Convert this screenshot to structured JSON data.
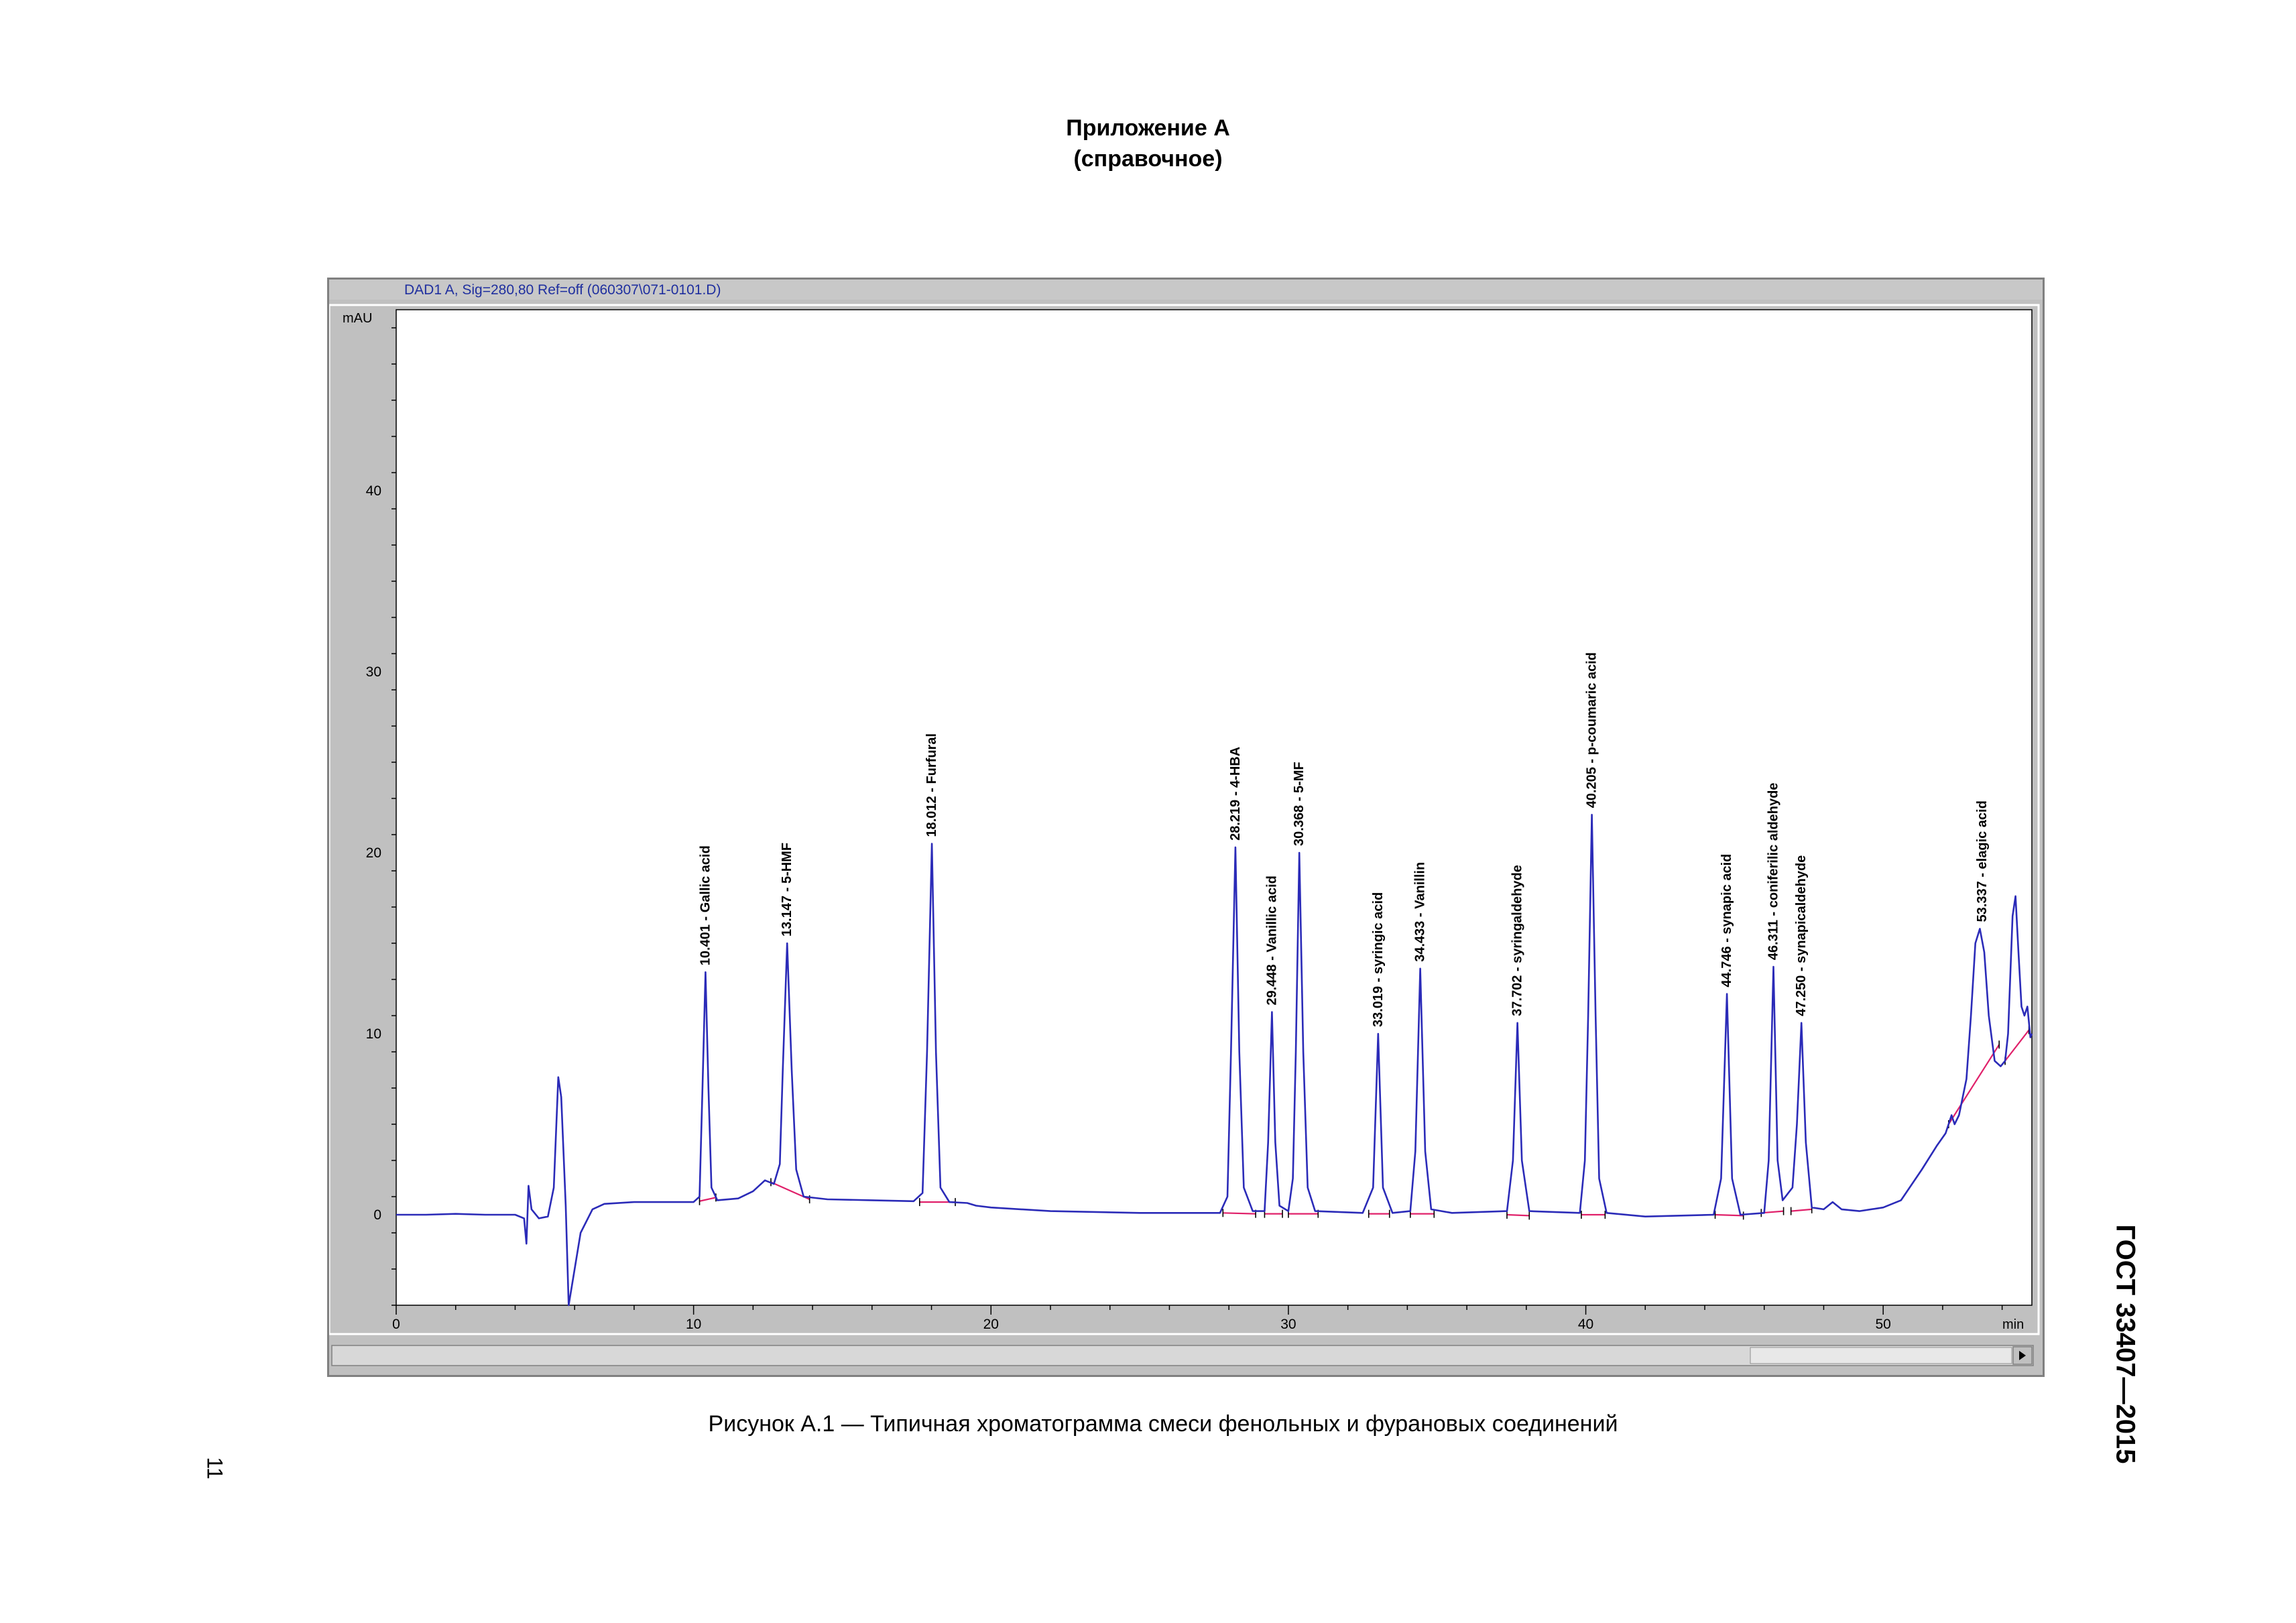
{
  "page": {
    "appendix_title": "Приложение А",
    "appendix_subtitle": "(справочное)",
    "caption": "Рисунок А.1 — Типичная хроматограмма смеси фенольных и фурановых соединений",
    "doc_code": "ГОСТ 33407—2015",
    "page_number": "11"
  },
  "colors": {
    "trace": "#2b2bb8",
    "baseline": "#e0206a",
    "header_text": "#1f2f9f",
    "window_bg": "#c0c0c0",
    "plot_bg": "#ffffff"
  },
  "icons": {
    "scroll_right": "triangle-right-icon"
  },
  "chart_data": {
    "type": "line",
    "window_title": "DAD1 A, Sig=280,80 Ref=off (060307\\071-0101.D)",
    "ylabel": "mAU",
    "xlabel": "min",
    "xlim": [
      0,
      55
    ],
    "ylim": [
      -5,
      50
    ],
    "xticks": [
      0,
      10,
      20,
      30,
      40,
      50
    ],
    "yticks": [
      0,
      10,
      20,
      30,
      40
    ],
    "grid": false,
    "peaks": [
      {
        "rt": 10.401,
        "height": 13.4,
        "label": "10.401 -  Gallic acid"
      },
      {
        "rt": 13.147,
        "height": 15.0,
        "label": "13.147 -  5-HMF"
      },
      {
        "rt": 18.012,
        "height": 20.5,
        "label": "18.012 -  Furfural"
      },
      {
        "rt": 28.219,
        "height": 20.3,
        "label": "28.219 -  4-HBA"
      },
      {
        "rt": 29.448,
        "height": 11.2,
        "label": "29.448 -  Vanillic acid"
      },
      {
        "rt": 30.368,
        "height": 20.0,
        "label": "30.368 -  5-MF"
      },
      {
        "rt": 33.019,
        "height": 10.0,
        "label": "33.019 -  syringic acid"
      },
      {
        "rt": 34.433,
        "height": 13.6,
        "label": "34.433 -  Vanillin"
      },
      {
        "rt": 37.702,
        "height": 10.6,
        "label": "37.702 -  syringaldehyde"
      },
      {
        "rt": 40.205,
        "height": 22.1,
        "label": "40.205 -  p-coumaric acid"
      },
      {
        "rt": 44.746,
        "height": 12.2,
        "label": "44.746 -  synapic acid"
      },
      {
        "rt": 46.311,
        "height": 13.7,
        "label": "46.311 -  coniferilic aldehyde"
      },
      {
        "rt": 47.25,
        "height": 10.6,
        "label": "47.250 -  synapicaldehyde"
      },
      {
        "rt": 53.337,
        "height": 15.8,
        "label": "53.337 -  elagic acid"
      }
    ],
    "trace": [
      [
        0,
        0
      ],
      [
        1,
        0
      ],
      [
        2,
        0.05
      ],
      [
        3,
        0
      ],
      [
        4,
        0
      ],
      [
        4.3,
        -0.2
      ],
      [
        4.38,
        -1.6
      ],
      [
        4.45,
        1.6
      ],
      [
        4.55,
        0.3
      ],
      [
        4.8,
        -0.2
      ],
      [
        5.1,
        -0.1
      ],
      [
        5.3,
        1.5
      ],
      [
        5.45,
        7.6
      ],
      [
        5.55,
        6.5
      ],
      [
        5.7,
        0.5
      ],
      [
        5.8,
        -5
      ],
      [
        5.95,
        -3.5
      ],
      [
        6.2,
        -1
      ],
      [
        6.6,
        0.3
      ],
      [
        7,
        0.6
      ],
      [
        8,
        0.7
      ],
      [
        9,
        0.7
      ],
      [
        10.0,
        0.7
      ],
      [
        10.2,
        1.0
      ],
      [
        10.3,
        7
      ],
      [
        10.401,
        13.4
      ],
      [
        10.5,
        7
      ],
      [
        10.6,
        1.5
      ],
      [
        10.8,
        0.8
      ],
      [
        11.5,
        0.9
      ],
      [
        12.0,
        1.3
      ],
      [
        12.4,
        1.9
      ],
      [
        12.7,
        1.7
      ],
      [
        12.9,
        2.8
      ],
      [
        13.0,
        8.0
      ],
      [
        13.147,
        15.0
      ],
      [
        13.3,
        8.0
      ],
      [
        13.45,
        2.5
      ],
      [
        13.7,
        1.0
      ],
      [
        14.5,
        0.85
      ],
      [
        16,
        0.8
      ],
      [
        17.4,
        0.75
      ],
      [
        17.7,
        1.2
      ],
      [
        17.85,
        9
      ],
      [
        18.012,
        20.5
      ],
      [
        18.15,
        9
      ],
      [
        18.3,
        1.5
      ],
      [
        18.6,
        0.7
      ],
      [
        19.2,
        0.65
      ],
      [
        19.5,
        0.5
      ],
      [
        20,
        0.4
      ],
      [
        22,
        0.2
      ],
      [
        25,
        0.1
      ],
      [
        27.7,
        0.1
      ],
      [
        27.95,
        1.0
      ],
      [
        28.07,
        9
      ],
      [
        28.219,
        20.3
      ],
      [
        28.35,
        9
      ],
      [
        28.5,
        1.5
      ],
      [
        28.8,
        0.2
      ],
      [
        29.2,
        0.2
      ],
      [
        29.32,
        4
      ],
      [
        29.448,
        11.2
      ],
      [
        29.56,
        4
      ],
      [
        29.7,
        0.5
      ],
      [
        30.0,
        0.2
      ],
      [
        30.15,
        2
      ],
      [
        30.25,
        9
      ],
      [
        30.368,
        20.0
      ],
      [
        30.5,
        9
      ],
      [
        30.65,
        1.5
      ],
      [
        30.9,
        0.2
      ],
      [
        32.5,
        0.1
      ],
      [
        32.85,
        1.5
      ],
      [
        33.019,
        10.0
      ],
      [
        33.18,
        1.5
      ],
      [
        33.5,
        0.1
      ],
      [
        34.1,
        0.2
      ],
      [
        34.27,
        3.5
      ],
      [
        34.433,
        13.6
      ],
      [
        34.6,
        3.5
      ],
      [
        34.8,
        0.3
      ],
      [
        35.5,
        0.1
      ],
      [
        37.35,
        0.2
      ],
      [
        37.55,
        3
      ],
      [
        37.702,
        10.6
      ],
      [
        37.85,
        3
      ],
      [
        38.1,
        0.2
      ],
      [
        39.8,
        0.1
      ],
      [
        39.97,
        3
      ],
      [
        40.08,
        11
      ],
      [
        40.205,
        22.1
      ],
      [
        40.33,
        11
      ],
      [
        40.45,
        2
      ],
      [
        40.7,
        0.1
      ],
      [
        42,
        -0.1
      ],
      [
        44.3,
        0
      ],
      [
        44.55,
        2
      ],
      [
        44.746,
        12.2
      ],
      [
        44.92,
        2
      ],
      [
        45.2,
        0
      ],
      [
        46.0,
        0.1
      ],
      [
        46.15,
        3
      ],
      [
        46.311,
        13.7
      ],
      [
        46.45,
        3
      ],
      [
        46.62,
        0.8
      ],
      [
        46.95,
        1.5
      ],
      [
        47.1,
        5
      ],
      [
        47.25,
        10.6
      ],
      [
        47.4,
        4
      ],
      [
        47.6,
        0.4
      ],
      [
        48.0,
        0.3
      ],
      [
        48.3,
        0.7
      ],
      [
        48.6,
        0.3
      ],
      [
        49.2,
        0.2
      ],
      [
        50.0,
        0.4
      ],
      [
        50.6,
        0.8
      ],
      [
        51.3,
        2.5
      ],
      [
        51.8,
        3.8
      ],
      [
        52.1,
        4.5
      ],
      [
        52.3,
        5.5
      ],
      [
        52.4,
        5.0
      ],
      [
        52.55,
        5.5
      ],
      [
        52.8,
        7.5
      ],
      [
        52.95,
        11
      ],
      [
        53.1,
        15
      ],
      [
        53.25,
        15.8
      ],
      [
        53.4,
        14.5
      ],
      [
        53.55,
        11
      ],
      [
        53.75,
        8.5
      ],
      [
        53.95,
        8.2
      ],
      [
        54.1,
        8.5
      ],
      [
        54.2,
        10
      ],
      [
        54.35,
        16.5
      ],
      [
        54.45,
        17.6
      ],
      [
        54.55,
        14.5
      ],
      [
        54.65,
        11.5
      ],
      [
        54.75,
        11.0
      ],
      [
        54.85,
        11.5
      ],
      [
        54.95,
        9.8
      ],
      [
        55,
        10
      ]
    ],
    "baselines": [
      [
        [
          10.2,
          0.75
        ],
        [
          10.75,
          0.95
        ]
      ],
      [
        [
          12.6,
          1.8
        ],
        [
          13.9,
          0.85
        ]
      ],
      [
        [
          17.6,
          0.7
        ],
        [
          18.8,
          0.7
        ]
      ],
      [
        [
          27.8,
          0.1
        ],
        [
          28.9,
          0.05
        ]
      ],
      [
        [
          29.2,
          0.05
        ],
        [
          29.8,
          0.05
        ]
      ],
      [
        [
          30.0,
          0.05
        ],
        [
          31.0,
          0.05
        ]
      ],
      [
        [
          32.7,
          0.05
        ],
        [
          33.4,
          0.05
        ]
      ],
      [
        [
          34.1,
          0.05
        ],
        [
          34.9,
          0.05
        ]
      ],
      [
        [
          37.35,
          0.0
        ],
        [
          38.1,
          -0.05
        ]
      ],
      [
        [
          39.85,
          0.0
        ],
        [
          40.65,
          0.0
        ]
      ],
      [
        [
          44.35,
          0.0
        ],
        [
          45.3,
          -0.05
        ]
      ],
      [
        [
          45.9,
          0.1
        ],
        [
          46.65,
          0.2
        ]
      ],
      [
        [
          46.9,
          0.2
        ],
        [
          47.6,
          0.3
        ]
      ],
      [
        [
          52.2,
          5.0
        ],
        [
          53.9,
          9.4
        ]
      ],
      [
        [
          54.1,
          8.5
        ],
        [
          54.9,
          10.2
        ]
      ]
    ]
  }
}
